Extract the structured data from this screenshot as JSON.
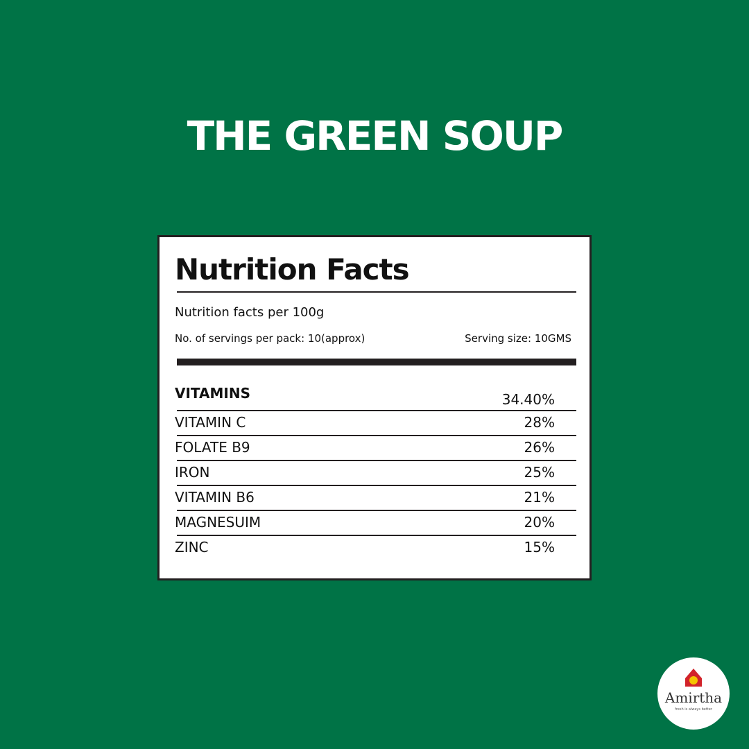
{
  "header": {
    "title": "THE GREEN SOUP"
  },
  "label": {
    "heading": "Nutrition Facts",
    "basis": "Nutrition facts per 100g",
    "servings": "No. of servings per pack: 10(approx)",
    "serving_size": "Serving size: 10GMS"
  },
  "table": {
    "header": [
      "VITAMINS",
      "34.40%"
    ],
    "rows": [
      [
        "VITAMIN C",
        "28%"
      ],
      [
        "FOLATE B9",
        "26%"
      ],
      [
        "IRON",
        "25%"
      ],
      [
        "VITAMIN B6",
        "21%"
      ],
      [
        "MAGNESUIM",
        "20%"
      ],
      [
        "ZINC",
        "15%"
      ]
    ]
  },
  "logo": {
    "name": "Amirtha",
    "tagline": "fresh is always better"
  }
}
